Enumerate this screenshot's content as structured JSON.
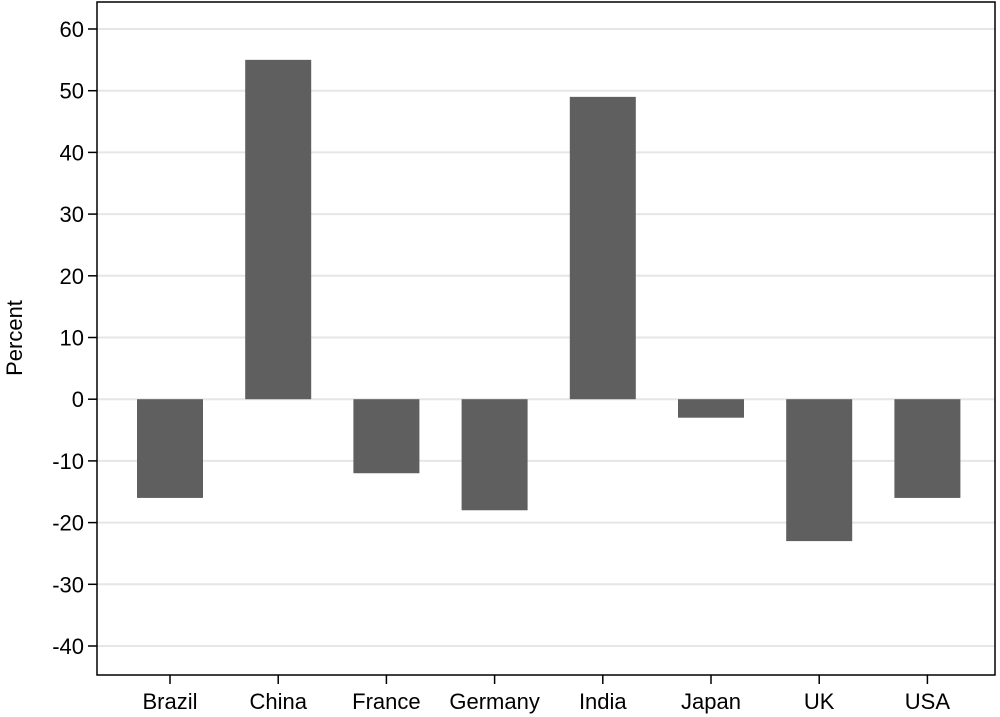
{
  "chart_data": {
    "type": "bar",
    "title": "",
    "xlabel": "",
    "ylabel": "Percent",
    "categories": [
      "Brazil",
      "China",
      "France",
      "Germany",
      "India",
      "Japan",
      "UK",
      "USA"
    ],
    "values": [
      -16,
      55,
      -12,
      -18,
      49,
      -3,
      -23,
      -16
    ],
    "ylim": [
      -40,
      60
    ],
    "yticks": [
      60,
      50,
      40,
      30,
      20,
      10,
      0,
      -10,
      -20,
      -30,
      -40
    ],
    "ytick_labels": [
      "60",
      "50",
      "40",
      "30",
      "20",
      "10",
      "0",
      "-10",
      "-20",
      "-30",
      "-40"
    ],
    "grid": true,
    "legend": "none",
    "bar_color": "#5f5f5f",
    "grid_color": "#e6e6e6",
    "axis_color": "#000000"
  }
}
